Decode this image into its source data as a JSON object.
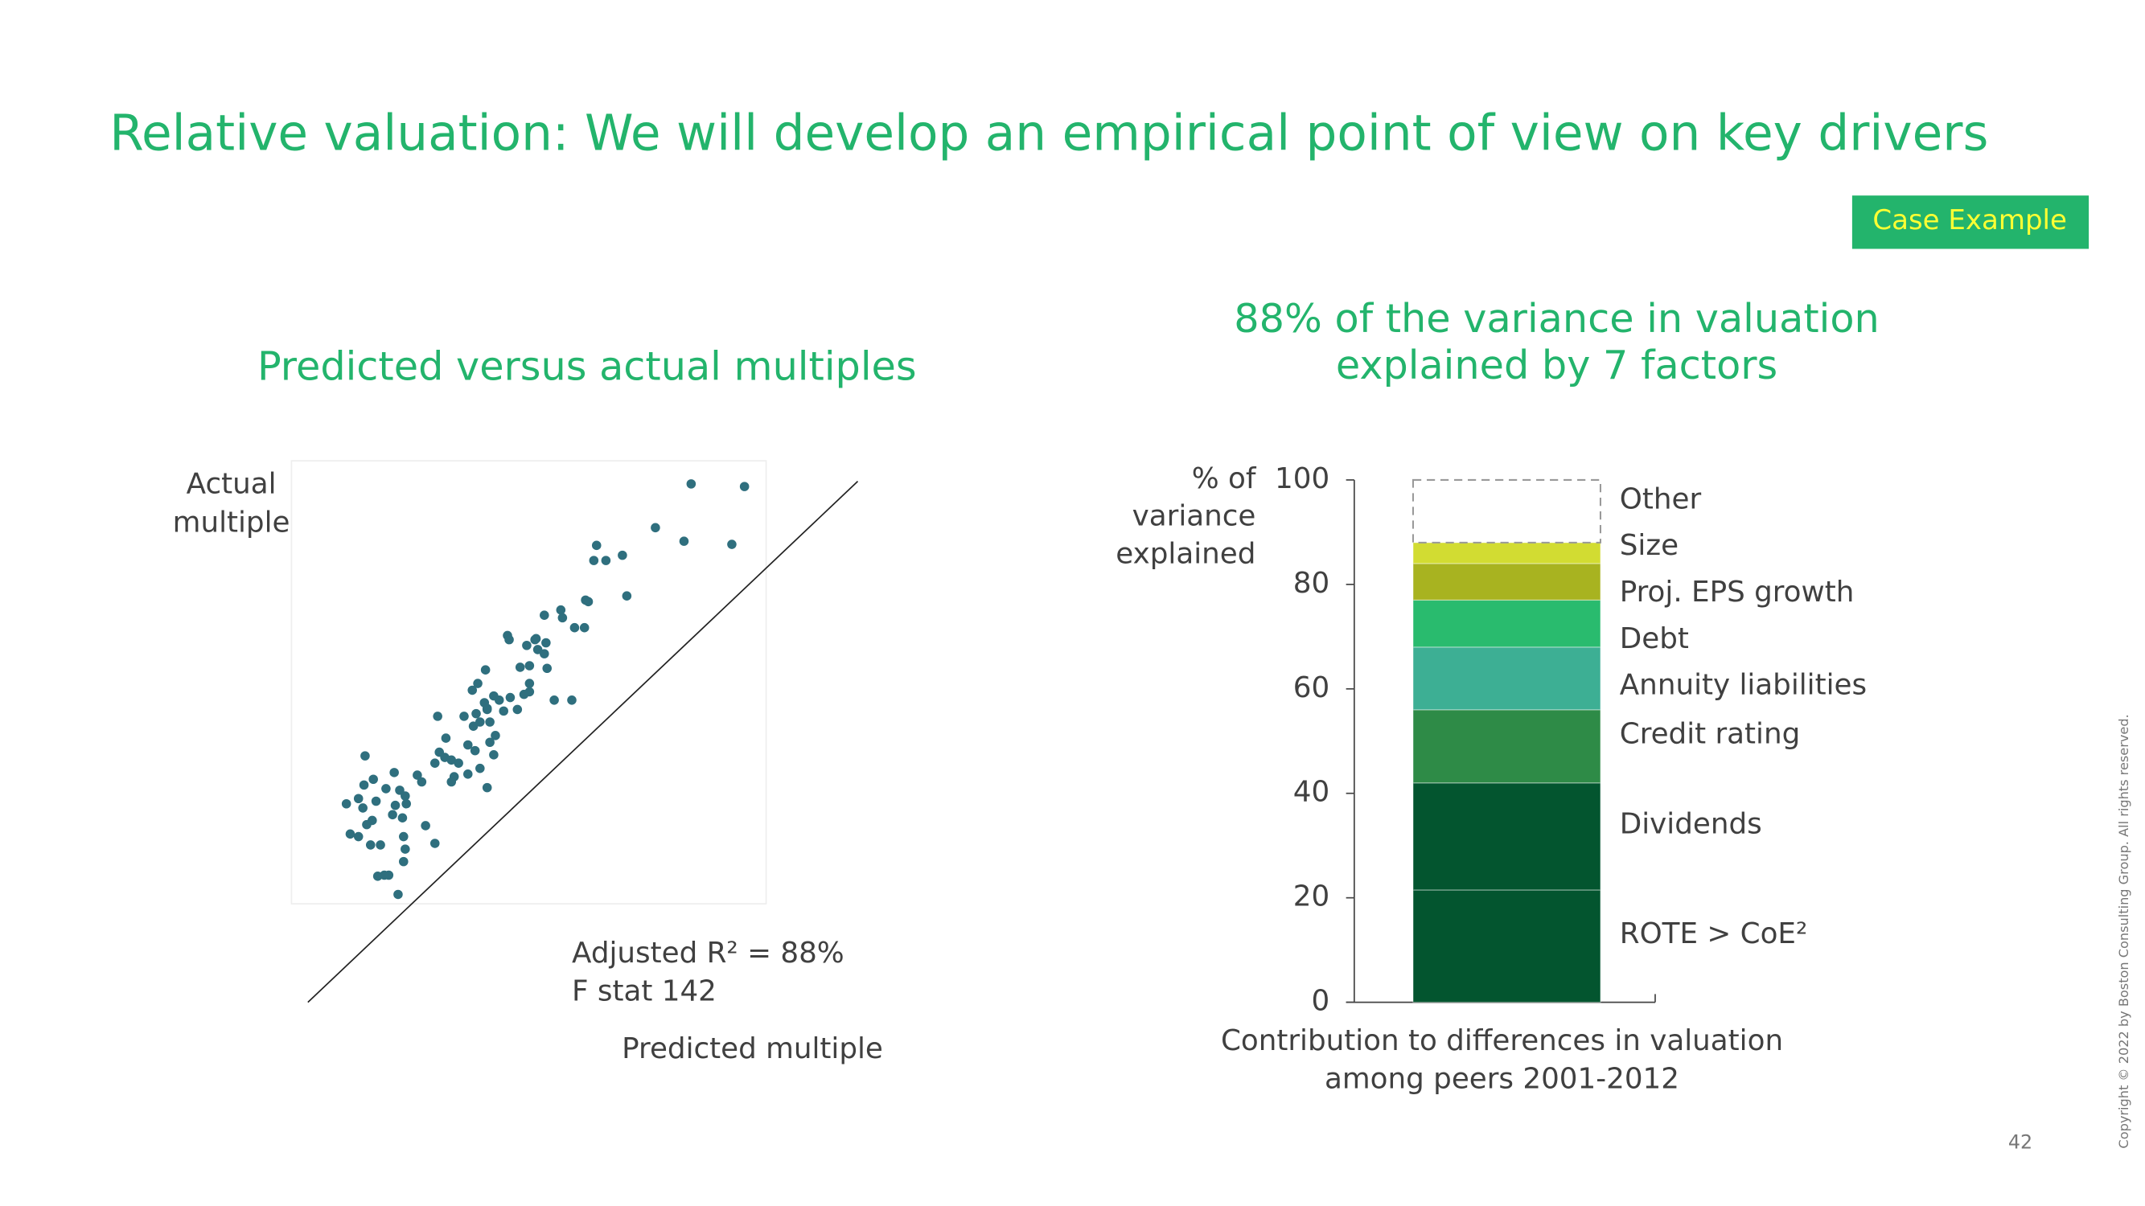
{
  "title": "Relative valuation: We will develop an empirical point of view on key drivers",
  "badge": "Case Example",
  "copyright": "Copyright © 2022 by Boston Consulting Group. All rights reserved.",
  "page_number": 42,
  "chart_data": [
    {
      "type": "scatter",
      "title": "Predicted versus actual multiples",
      "xlabel": "Predicted multiple",
      "ylabel": [
        "Actual",
        "multiple"
      ],
      "annotations": [
        "Adjusted R² = 88%",
        "F stat 142"
      ],
      "color": "#2f6f7e",
      "xlim": [
        0,
        100
      ],
      "ylim": [
        0,
        100
      ],
      "x": [
        69.7,
        79.4,
        63.2,
        68.4,
        77.1,
        52.5,
        57.2,
        54.2,
        52.0,
        58.0,
        51.0,
        50.5,
        46.0,
        43.0,
        46.3,
        50.3,
        48.5,
        36.3,
        41.3,
        43.3,
        39.8,
        41.8,
        43.0,
        43.5,
        40.3,
        38.6,
        32.3,
        30.9,
        40.3,
        40.3,
        39.3,
        29.9,
        44.8,
        48.0,
        33.8,
        34.8,
        32.1,
        36.8,
        32.6,
        30.6,
        23.6,
        35.6,
        38.1,
        28.4,
        31.3,
        33.1,
        30.1,
        34.1,
        25.1,
        33.1,
        29.1,
        30.4,
        33.8,
        23.9,
        24.9,
        26.1,
        27.4,
        23.1,
        31.3,
        29.1,
        26.6,
        19.9,
        10.4,
        15.7,
        11.9,
        10.2,
        14.2,
        16.7,
        17.7,
        7.0,
        9.2,
        12.4,
        15.9,
        10.0,
        17.9,
        15.4,
        11.7,
        10.7,
        17.2,
        21.4,
        7.7,
        9.2,
        17.4,
        11.4,
        13.2,
        23.1,
        17.7,
        17.4,
        14.7,
        12.7,
        13.9,
        16.4,
        26.1,
        20.7,
        32.6,
        32.6,
        36.6,
        41.5
      ],
      "values": [
        99.5,
        99.0,
        91.1,
        88.5,
        87.9,
        87.7,
        85.8,
        84.8,
        84.8,
        78.0,
        76.9,
        77.2,
        75.3,
        74.3,
        73.8,
        71.9,
        71.9,
        70.4,
        69.6,
        69.0,
        68.5,
        67.7,
        66.9,
        64.1,
        64.6,
        64.3,
        63.8,
        61.2,
        61.2,
        59.6,
        59.1,
        59.9,
        58.0,
        58.0,
        58.8,
        58.0,
        57.5,
        58.5,
        56.2,
        55.4,
        54.9,
        55.9,
        56.2,
        54.9,
        53.8,
        53.8,
        53.0,
        51.2,
        50.7,
        49.9,
        49.4,
        48.3,
        47.5,
        48.0,
        47.0,
        46.5,
        45.9,
        45.9,
        44.9,
        43.8,
        43.3,
        43.6,
        47.3,
        44.1,
        42.8,
        41.7,
        41.0,
        40.7,
        39.6,
        38.1,
        39.1,
        38.6,
        37.8,
        37.3,
        38.1,
        36.0,
        34.9,
        34.1,
        35.4,
        33.9,
        32.3,
        31.8,
        31.8,
        30.2,
        30.2,
        30.5,
        29.4,
        27.0,
        24.4,
        24.2,
        24.4,
        20.7,
        42.3,
        42.3,
        41.2,
        56.4,
        69.6,
        69.8
      ]
    },
    {
      "type": "stacked-bar",
      "title": [
        "88% of the variance in valuation",
        "explained by 7 factors"
      ],
      "ylabel": [
        "% of",
        "variance",
        "explained"
      ],
      "xlabel": [
        "Contribution to differences in valuation",
        "among peers 2001-2012"
      ],
      "ylim": [
        0,
        100
      ],
      "yticks": [
        0,
        20,
        40,
        60,
        80,
        100
      ],
      "series": [
        {
          "name": "ROTE > CoE²",
          "color": "#03552f",
          "values": [
            21.5
          ]
        },
        {
          "name": "Dividends",
          "color": "#03552f",
          "values": [
            20.5
          ]
        },
        {
          "name": "Credit rating",
          "color": "#2e8b47",
          "values": [
            14
          ]
        },
        {
          "name": "Annuity liabilities",
          "color": "#3daf94",
          "values": [
            12
          ]
        },
        {
          "name": "Debt",
          "color": "#29bb6e",
          "values": [
            9
          ]
        },
        {
          "name": "Proj. EPS growth",
          "color": "#a8b320",
          "values": [
            7
          ]
        },
        {
          "name": "Size",
          "color": "#d2dc32",
          "values": [
            4
          ]
        },
        {
          "name": "Other",
          "color": "#ffffff",
          "dashed": true,
          "values": [
            12
          ]
        }
      ]
    }
  ]
}
